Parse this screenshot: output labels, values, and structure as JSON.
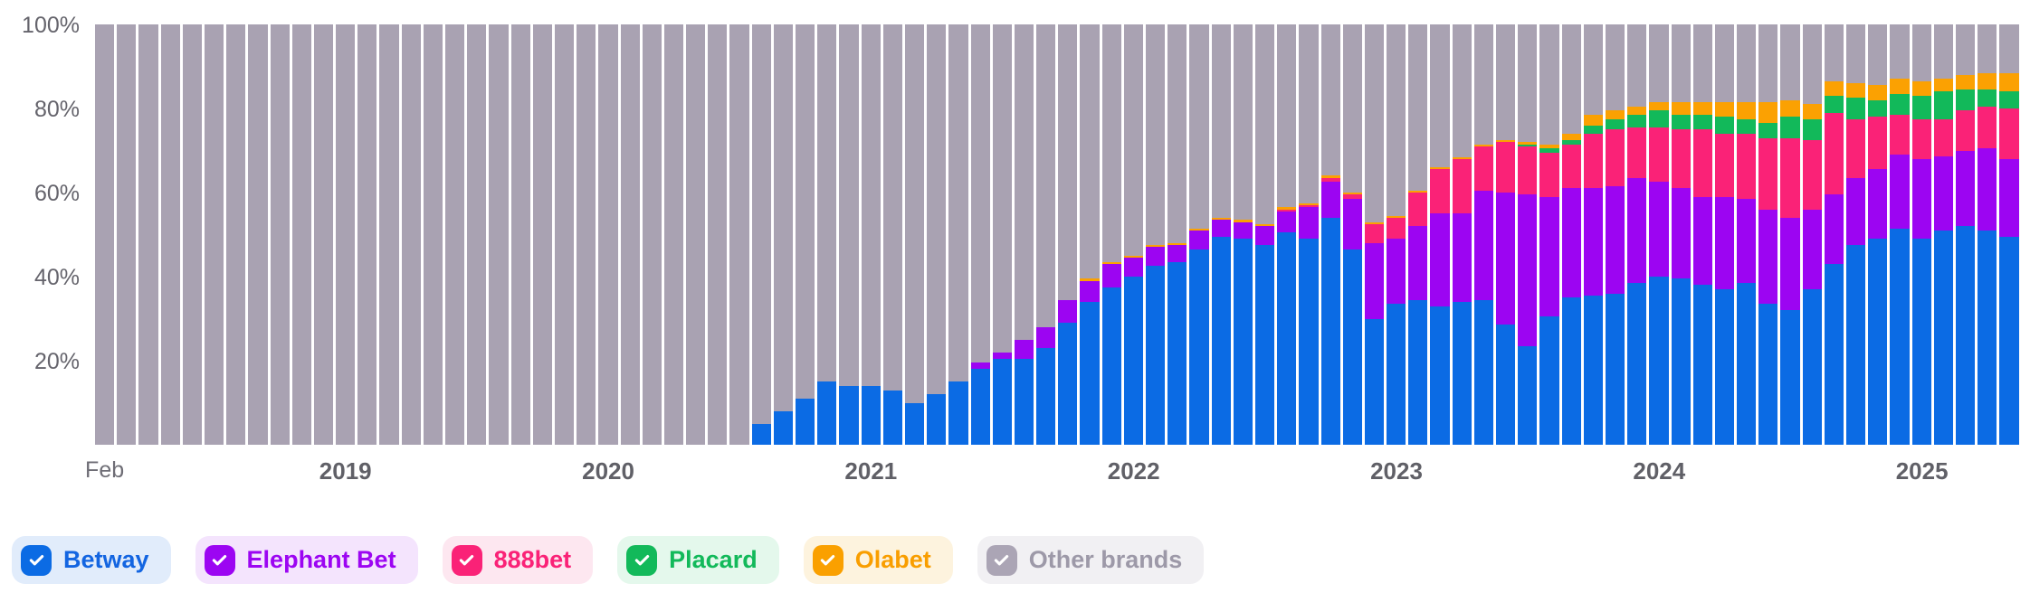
{
  "chart_data": {
    "type": "bar",
    "subtype": "stacked-100-percent",
    "title": "",
    "xlabel": "",
    "ylabel": "",
    "ylim": [
      0,
      100
    ],
    "unit": "%",
    "grid": false,
    "bar_count": 88,
    "months": [
      "2018-02",
      "2018-03",
      "2018-04",
      "2018-05",
      "2018-06",
      "2018-07",
      "2018-08",
      "2018-09",
      "2018-10",
      "2018-11",
      "2018-12",
      "2019-01",
      "2019-02",
      "2019-03",
      "2019-04",
      "2019-05",
      "2019-06",
      "2019-07",
      "2019-08",
      "2019-09",
      "2019-10",
      "2019-11",
      "2019-12",
      "2020-01",
      "2020-02",
      "2020-03",
      "2020-04",
      "2020-05",
      "2020-06",
      "2020-07",
      "2020-08",
      "2020-09",
      "2020-10",
      "2020-11",
      "2020-12",
      "2021-01",
      "2021-02",
      "2021-03",
      "2021-04",
      "2021-05",
      "2021-06",
      "2021-07",
      "2021-08",
      "2021-09",
      "2021-10",
      "2021-11",
      "2021-12",
      "2022-01",
      "2022-02",
      "2022-03",
      "2022-04",
      "2022-05",
      "2022-06",
      "2022-07",
      "2022-08",
      "2022-09",
      "2022-10",
      "2022-11",
      "2022-12",
      "2023-01",
      "2023-02",
      "2023-03",
      "2023-04",
      "2023-05",
      "2023-06",
      "2023-07",
      "2023-08",
      "2023-09",
      "2023-10",
      "2023-11",
      "2023-12",
      "2024-01",
      "2024-02",
      "2024-03",
      "2024-04",
      "2024-05",
      "2024-06",
      "2024-07",
      "2024-08",
      "2024-09",
      "2024-10",
      "2024-11",
      "2024-12",
      "2025-01",
      "2025-02",
      "2025-03",
      "2025-04",
      "2025-05"
    ],
    "series": [
      {
        "name": "Betway",
        "color": "#0b6be4",
        "values": [
          0,
          0,
          0,
          0,
          0,
          0,
          0,
          0,
          0,
          0,
          0,
          0,
          0,
          0,
          0,
          0,
          0,
          0,
          0,
          0,
          0,
          0,
          0,
          0,
          0,
          0,
          0,
          0,
          0,
          0,
          5,
          8,
          11,
          15,
          14,
          14,
          13,
          10,
          12,
          15,
          18,
          20.5,
          20.5,
          23,
          29,
          34,
          37.5,
          40,
          42.5,
          43.5,
          46.5,
          49.5,
          49,
          47.5,
          50.5,
          49,
          54,
          46.5,
          30,
          33.5,
          34.5,
          33,
          34,
          34.5,
          28.5,
          23.5,
          30.5,
          35,
          35.5,
          36,
          38.5,
          40,
          39.5,
          38,
          37,
          38.5,
          33.5,
          32,
          37,
          43,
          47.5,
          49,
          51.5,
          49,
          51,
          52,
          51,
          49.5
        ]
      },
      {
        "name": "Elephant Bet",
        "color": "#9c05f2",
        "values": [
          0,
          0,
          0,
          0,
          0,
          0,
          0,
          0,
          0,
          0,
          0,
          0,
          0,
          0,
          0,
          0,
          0,
          0,
          0,
          0,
          0,
          0,
          0,
          0,
          0,
          0,
          0,
          0,
          0,
          0,
          0,
          0,
          0,
          0,
          0,
          0,
          0,
          0,
          0,
          0,
          1.5,
          1.5,
          4.5,
          5,
          5.5,
          5,
          5.5,
          4.5,
          4.5,
          4,
          4.5,
          4,
          4,
          4.5,
          5,
          7.5,
          8.5,
          12,
          18,
          15.5,
          17.5,
          22,
          21,
          26,
          31.5,
          36,
          28.5,
          26,
          25.5,
          25.5,
          25,
          22.5,
          21.5,
          21,
          22,
          20,
          22.5,
          22,
          19,
          16.5,
          16,
          16.5,
          17.5,
          19,
          17.5,
          18,
          19.5,
          18.5
        ]
      },
      {
        "name": "888bet",
        "color": "#fa2277",
        "values": [
          0,
          0,
          0,
          0,
          0,
          0,
          0,
          0,
          0,
          0,
          0,
          0,
          0,
          0,
          0,
          0,
          0,
          0,
          0,
          0,
          0,
          0,
          0,
          0,
          0,
          0,
          0,
          0,
          0,
          0,
          0,
          0,
          0,
          0,
          0,
          0,
          0,
          0,
          0,
          0,
          0,
          0,
          0,
          0,
          0,
          0,
          0,
          0,
          0,
          0,
          0,
          0,
          0,
          0,
          0.5,
          0.5,
          1,
          1,
          4.5,
          5,
          8,
          10.5,
          13,
          10.5,
          12,
          11.5,
          10.5,
          10.5,
          13,
          13.5,
          12,
          13,
          14,
          16,
          15,
          15.5,
          17,
          19,
          16.5,
          19.5,
          14,
          12.5,
          9.5,
          9.5,
          9,
          9.5,
          10,
          12
        ]
      },
      {
        "name": "Placard",
        "color": "#12b95a",
        "values": [
          0,
          0,
          0,
          0,
          0,
          0,
          0,
          0,
          0,
          0,
          0,
          0,
          0,
          0,
          0,
          0,
          0,
          0,
          0,
          0,
          0,
          0,
          0,
          0,
          0,
          0,
          0,
          0,
          0,
          0,
          0,
          0,
          0,
          0,
          0,
          0,
          0,
          0,
          0,
          0,
          0,
          0,
          0,
          0,
          0,
          0,
          0,
          0,
          0,
          0,
          0,
          0,
          0,
          0,
          0,
          0,
          0,
          0,
          0,
          0,
          0,
          0,
          0,
          0,
          0,
          0.5,
          1,
          1,
          2,
          2.5,
          3,
          4,
          3.5,
          3.5,
          4,
          3.5,
          3.5,
          5,
          5,
          4,
          5,
          4,
          5,
          5.5,
          6.5,
          5,
          4,
          4
        ]
      },
      {
        "name": "Olabet",
        "color": "#fba102",
        "values": [
          0,
          0,
          0,
          0,
          0,
          0,
          0,
          0,
          0,
          0,
          0,
          0,
          0,
          0,
          0,
          0,
          0,
          0,
          0,
          0,
          0,
          0,
          0,
          0,
          0,
          0,
          0,
          0,
          0,
          0,
          0,
          0,
          0,
          0,
          0,
          0,
          0,
          0,
          0,
          0,
          0,
          0,
          0,
          0,
          0,
          0.5,
          0.5,
          0.5,
          0.5,
          0.5,
          0.5,
          0.5,
          0.5,
          0.5,
          0.5,
          0.5,
          0.5,
          0.5,
          0.5,
          0.5,
          0.5,
          0.5,
          0.5,
          0.5,
          0.5,
          0.5,
          1,
          1.5,
          2.5,
          2,
          2,
          2,
          3,
          3,
          3.5,
          4,
          5,
          4,
          3.5,
          3.5,
          3.5,
          3.5,
          3.5,
          3.5,
          3,
          3.5,
          4,
          4.5
        ]
      },
      {
        "name": "Other brands",
        "color": "#a9a2b2",
        "values": [
          100,
          100,
          100,
          100,
          100,
          100,
          100,
          100,
          100,
          100,
          100,
          100,
          100,
          100,
          100,
          100,
          100,
          100,
          100,
          100,
          100,
          100,
          100,
          100,
          100,
          100,
          100,
          100,
          100,
          100,
          95,
          92,
          89,
          85,
          86,
          86,
          87,
          90,
          88,
          85,
          80.5,
          78,
          75,
          72,
          65.5,
          60.5,
          56.5,
          55,
          52.5,
          52,
          48.5,
          46,
          46.5,
          47.5,
          43.5,
          42.5,
          36,
          40,
          47,
          45.5,
          39.5,
          34,
          31.5,
          28.5,
          27.5,
          28,
          28.5,
          26,
          21.5,
          20.5,
          19.5,
          18.5,
          18.5,
          18.5,
          18.5,
          18.5,
          18.5,
          18,
          19,
          13.5,
          14,
          14.5,
          13,
          13.5,
          13,
          12,
          11.5,
          11.5
        ]
      }
    ],
    "y_axis": {
      "tick_labels": [
        "100%",
        "80%",
        "60%",
        "40%",
        "20%"
      ]
    },
    "x_axis": {
      "ticks": [
        {
          "label": "Feb",
          "month_index": 0,
          "minor": true
        },
        {
          "label": "2019",
          "month_index": 11,
          "minor": false
        },
        {
          "label": "2020",
          "month_index": 23,
          "minor": false
        },
        {
          "label": "2021",
          "month_index": 35,
          "minor": false
        },
        {
          "label": "2022",
          "month_index": 47,
          "minor": false
        },
        {
          "label": "2023",
          "month_index": 59,
          "minor": false
        },
        {
          "label": "2024",
          "month_index": 71,
          "minor": false
        },
        {
          "label": "2025",
          "month_index": 83,
          "minor": false
        }
      ]
    },
    "legend_position": "bottom-left"
  },
  "legend": {
    "items": [
      {
        "label": "Betway",
        "checked": true,
        "check_color": "#0b6be4",
        "text_color": "#1365e1",
        "bg_color": "#e1ecfb"
      },
      {
        "label": "Elephant Bet",
        "checked": true,
        "check_color": "#9c05f2",
        "text_color": "#9c05f2",
        "bg_color": "#f4e4fd"
      },
      {
        "label": "888bet",
        "checked": true,
        "check_color": "#fa2277",
        "text_color": "#fa2277",
        "bg_color": "#fde7f0"
      },
      {
        "label": "Placard",
        "checked": true,
        "check_color": "#12b95a",
        "text_color": "#12b95a",
        "bg_color": "#e4f8ec"
      },
      {
        "label": "Olabet",
        "checked": true,
        "check_color": "#faa000",
        "text_color": "#f99e00",
        "bg_color": "#fdf3de"
      },
      {
        "label": "Other brands",
        "checked": true,
        "check_color": "#aba5b5",
        "text_color": "#9d99a8",
        "bg_color": "#f1f0f3"
      }
    ]
  }
}
